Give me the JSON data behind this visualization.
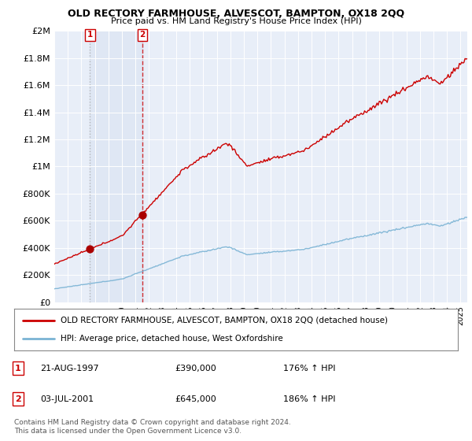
{
  "title": "OLD RECTORY FARMHOUSE, ALVESCOT, BAMPTON, OX18 2QQ",
  "subtitle": "Price paid vs. HM Land Registry's House Price Index (HPI)",
  "legend_line1": "OLD RECTORY FARMHOUSE, ALVESCOT, BAMPTON, OX18 2QQ (detached house)",
  "legend_line2": "HPI: Average price, detached house, West Oxfordshire",
  "sale1_label": "1",
  "sale1_date": "21-AUG-1997",
  "sale1_price": "£390,000",
  "sale1_hpi": "176% ↑ HPI",
  "sale1_year": 1997.64,
  "sale1_value": 390000,
  "sale2_label": "2",
  "sale2_date": "03-JUL-2001",
  "sale2_price": "£645,000",
  "sale2_hpi": "186% ↑ HPI",
  "sale2_year": 2001.5,
  "sale2_value": 645000,
  "hpi_color": "#7ab3d4",
  "price_color": "#cc0000",
  "dot_color": "#aa0000",
  "bg_color": "#e8eef8",
  "grid_color": "#ffffff",
  "shade_color": "#d0dcee",
  "ylim": [
    0,
    2000000
  ],
  "yticks": [
    0,
    200000,
    400000,
    600000,
    800000,
    1000000,
    1200000,
    1400000,
    1600000,
    1800000,
    2000000
  ],
  "ytick_labels": [
    "£0",
    "£200K",
    "£400K",
    "£600K",
    "£800K",
    "£1M",
    "£1.2M",
    "£1.4M",
    "£1.6M",
    "£1.8M",
    "£2M"
  ],
  "xlim_start": 1995.0,
  "xlim_end": 2025.5,
  "footer": "Contains HM Land Registry data © Crown copyright and database right 2024.\nThis data is licensed under the Open Government Licence v3.0."
}
